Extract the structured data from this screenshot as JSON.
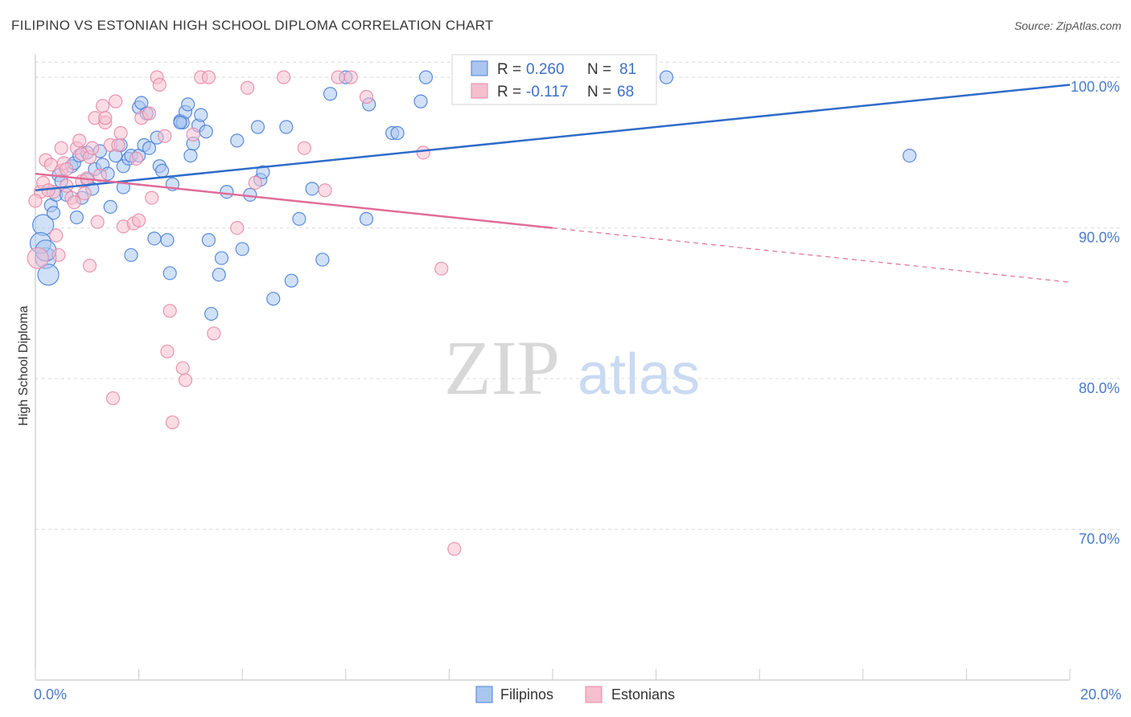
{
  "title": "FILIPINO VS ESTONIAN HIGH SCHOOL DIPLOMA CORRELATION CHART",
  "source": "Source: ZipAtlas.com",
  "watermark": {
    "zip": "ZIP",
    "atlas": "atlas"
  },
  "colors": {
    "blue": "#4a7fd6",
    "blue_fill": "#aac6f0",
    "blue_line": "#2f6cc9",
    "pink": "#e88aa8",
    "pink_fill": "#f5bfd0",
    "pink_line": "#e06d98",
    "tick_text": "#4a7cc7",
    "grid": "#dcdcdc"
  },
  "stats_legend": {
    "rows": [
      {
        "r_label": "R =",
        "r_value": "0.260",
        "n_label": "N =",
        "n_value": "81",
        "color": "blue"
      },
      {
        "r_label": "R =",
        "r_value": "-0.117",
        "n_label": "N =",
        "n_value": "68",
        "color": "pink"
      }
    ]
  },
  "chart_data": {
    "type": "scatter",
    "title": "FILIPINO VS ESTONIAN HIGH SCHOOL DIPLOMA CORRELATION CHART",
    "xlabel": "",
    "ylabel": "High School Diploma",
    "xlim": [
      0,
      20
    ],
    "ylim": [
      60,
      101.5
    ],
    "x_tick_labels": [
      "0.0%",
      "20.0%"
    ],
    "y_ticks": [
      70,
      80,
      90,
      100
    ],
    "y_tick_labels": [
      "70.0%",
      "80.0%",
      "90.0%",
      "100.0%"
    ],
    "grid": true,
    "legend_placement": "bottom-center",
    "series": [
      {
        "name": "Filipinos",
        "color": "blue",
        "r": 0.26,
        "n": 81,
        "trend": {
          "x": [
            0,
            20
          ],
          "y": [
            92.5,
            99.5
          ],
          "solid_until": 20
        },
        "points": [
          [
            0.15,
            90.2
          ],
          [
            0.2,
            88.0
          ],
          [
            0.25,
            86.9
          ],
          [
            0.3,
            91.5
          ],
          [
            0.35,
            91.0
          ],
          [
            0.4,
            92.2
          ],
          [
            0.45,
            93.5
          ],
          [
            0.5,
            93.1
          ],
          [
            0.6,
            92.2
          ],
          [
            0.7,
            94.1
          ],
          [
            0.75,
            94.3
          ],
          [
            0.8,
            90.7
          ],
          [
            0.85,
            94.8
          ],
          [
            0.9,
            92.0
          ],
          [
            1.0,
            93.2
          ],
          [
            1.1,
            92.6
          ],
          [
            1.15,
            93.9
          ],
          [
            1.25,
            95.1
          ],
          [
            1.3,
            94.2
          ],
          [
            1.4,
            93.6
          ],
          [
            1.45,
            91.4
          ],
          [
            1.55,
            94.8
          ],
          [
            1.65,
            95.5
          ],
          [
            1.7,
            94.1
          ],
          [
            1.7,
            92.7
          ],
          [
            1.8,
            94.6
          ],
          [
            1.85,
            94.8
          ],
          [
            1.85,
            88.2
          ],
          [
            2.0,
            94.8
          ],
          [
            2.0,
            98.0
          ],
          [
            2.05,
            98.3
          ],
          [
            2.1,
            95.5
          ],
          [
            2.15,
            97.6
          ],
          [
            2.2,
            95.3
          ],
          [
            2.3,
            89.3
          ],
          [
            2.35,
            96.0
          ],
          [
            2.4,
            94.1
          ],
          [
            2.45,
            93.8
          ],
          [
            2.55,
            89.2
          ],
          [
            2.6,
            87.0
          ],
          [
            2.65,
            92.9
          ],
          [
            2.8,
            97.1
          ],
          [
            2.85,
            97.0
          ],
          [
            2.9,
            97.7
          ],
          [
            2.95,
            98.2
          ],
          [
            3.0,
            94.8
          ],
          [
            3.05,
            95.6
          ],
          [
            3.15,
            96.8
          ],
          [
            3.2,
            97.5
          ],
          [
            3.3,
            96.4
          ],
          [
            3.35,
            89.2
          ],
          [
            3.4,
            84.3
          ],
          [
            3.55,
            86.9
          ],
          [
            3.6,
            88.0
          ],
          [
            3.7,
            92.4
          ],
          [
            3.9,
            95.8
          ],
          [
            4.0,
            88.6
          ],
          [
            4.15,
            92.2
          ],
          [
            4.3,
            96.7
          ],
          [
            4.35,
            93.2
          ],
          [
            4.4,
            93.7
          ],
          [
            4.6,
            85.3
          ],
          [
            4.85,
            96.7
          ],
          [
            4.95,
            86.5
          ],
          [
            5.1,
            90.6
          ],
          [
            5.35,
            92.6
          ],
          [
            5.55,
            87.9
          ],
          [
            5.7,
            98.9
          ],
          [
            6.0,
            100.0
          ],
          [
            6.4,
            90.6
          ],
          [
            6.45,
            98.2
          ],
          [
            6.9,
            96.3
          ],
          [
            7.0,
            96.3
          ],
          [
            7.45,
            98.4
          ],
          [
            7.55,
            100.0
          ],
          [
            0.1,
            89.0
          ],
          [
            0.2,
            88.5
          ],
          [
            1.0,
            95.0
          ],
          [
            2.8,
            97.0
          ],
          [
            12.2,
            100.0
          ],
          [
            16.9,
            94.8
          ]
        ]
      },
      {
        "name": "Estonians",
        "color": "pink",
        "r": -0.117,
        "n": 68,
        "trend": {
          "x": [
            0,
            20
          ],
          "y": [
            93.6,
            86.4
          ],
          "solid_until": 10
        },
        "points": [
          [
            0.05,
            88.0
          ],
          [
            0.1,
            92.4
          ],
          [
            0.15,
            93.0
          ],
          [
            0.2,
            94.5
          ],
          [
            0.3,
            94.2
          ],
          [
            0.35,
            92.4
          ],
          [
            0.4,
            89.5
          ],
          [
            0.45,
            88.2
          ],
          [
            0.5,
            93.8
          ],
          [
            0.5,
            95.3
          ],
          [
            0.55,
            94.3
          ],
          [
            0.6,
            92.8
          ],
          [
            0.7,
            92.0
          ],
          [
            0.75,
            91.7
          ],
          [
            0.8,
            95.3
          ],
          [
            0.85,
            95.8
          ],
          [
            0.9,
            94.9
          ],
          [
            0.9,
            93.1
          ],
          [
            0.95,
            92.3
          ],
          [
            1.0,
            93.3
          ],
          [
            1.05,
            94.7
          ],
          [
            1.1,
            95.3
          ],
          [
            1.15,
            97.3
          ],
          [
            1.05,
            87.5
          ],
          [
            1.2,
            90.4
          ],
          [
            1.25,
            93.5
          ],
          [
            1.3,
            98.1
          ],
          [
            1.35,
            97.0
          ],
          [
            1.35,
            97.3
          ],
          [
            1.45,
            95.5
          ],
          [
            1.5,
            78.7
          ],
          [
            1.55,
            98.4
          ],
          [
            1.6,
            95.5
          ],
          [
            1.65,
            96.3
          ],
          [
            1.7,
            90.1
          ],
          [
            1.9,
            90.3
          ],
          [
            1.95,
            94.6
          ],
          [
            2.0,
            90.5
          ],
          [
            2.05,
            97.3
          ],
          [
            2.2,
            97.6
          ],
          [
            2.25,
            92.0
          ],
          [
            2.35,
            100.0
          ],
          [
            2.4,
            99.5
          ],
          [
            2.5,
            96.1
          ],
          [
            2.55,
            81.8
          ],
          [
            2.6,
            84.5
          ],
          [
            2.65,
            77.1
          ],
          [
            2.85,
            80.7
          ],
          [
            2.9,
            79.9
          ],
          [
            3.05,
            96.2
          ],
          [
            3.2,
            100.0
          ],
          [
            3.35,
            100.0
          ],
          [
            3.45,
            83.0
          ],
          [
            3.9,
            90.0
          ],
          [
            4.1,
            99.3
          ],
          [
            4.25,
            93.0
          ],
          [
            4.8,
            100.0
          ],
          [
            5.2,
            95.3
          ],
          [
            5.6,
            92.5
          ],
          [
            5.85,
            100.0
          ],
          [
            6.1,
            100.0
          ],
          [
            6.4,
            98.7
          ],
          [
            7.5,
            95.0
          ],
          [
            7.85,
            87.3
          ],
          [
            8.1,
            68.7
          ],
          [
            0.25,
            92.5
          ],
          [
            0.6,
            93.9
          ],
          [
            0.0,
            91.8
          ]
        ]
      }
    ]
  },
  "bottom_legend": [
    {
      "label": "Filipinos",
      "color": "blue"
    },
    {
      "label": "Estonians",
      "color": "pink"
    }
  ]
}
